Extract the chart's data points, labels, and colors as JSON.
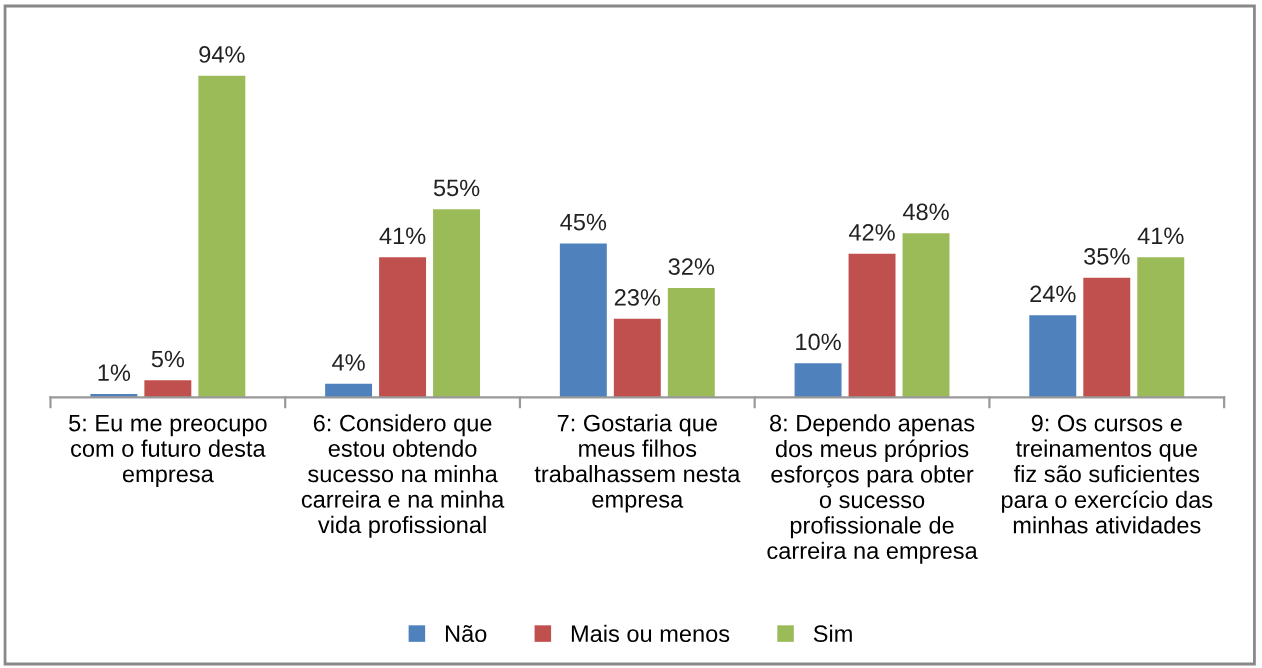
{
  "chart_data": {
    "type": "bar",
    "categories": [
      "5: Eu me preocupo\ncom o futuro desta\nempresa",
      "6: Considero que\nestou obtendo\nsucesso na minha\ncarreira e na minha\nvida profissional",
      "7: Gostaria que\nmeus filhos\ntrabalhassem nesta\nempresa",
      "8: Dependo apenas\ndos meus próprios\nesforços para obter\no sucesso\nprofissionale de\ncarreira na empresa",
      "9: Os cursos e\ntreinamentos que\nfiz são suficientes\npara o exercício das\nminhas atividades"
    ],
    "series": [
      {
        "name": "Não",
        "color": "#4f81bd",
        "values": [
          1,
          4,
          45,
          10,
          24
        ],
        "value_labels": [
          "1%",
          "4%",
          "45%",
          "10%",
          "24%"
        ]
      },
      {
        "name": "Mais ou menos",
        "color": "#c0504d",
        "values": [
          5,
          41,
          23,
          42,
          35
        ],
        "value_labels": [
          "5%",
          "41%",
          "23%",
          "42%",
          "35%"
        ]
      },
      {
        "name": "Sim",
        "color": "#9bbb59",
        "values": [
          94,
          55,
          32,
          48,
          41
        ],
        "value_labels": [
          "94%",
          "55%",
          "32%",
          "48%",
          "41%"
        ]
      }
    ],
    "legend": "bottom",
    "grid": false
  }
}
